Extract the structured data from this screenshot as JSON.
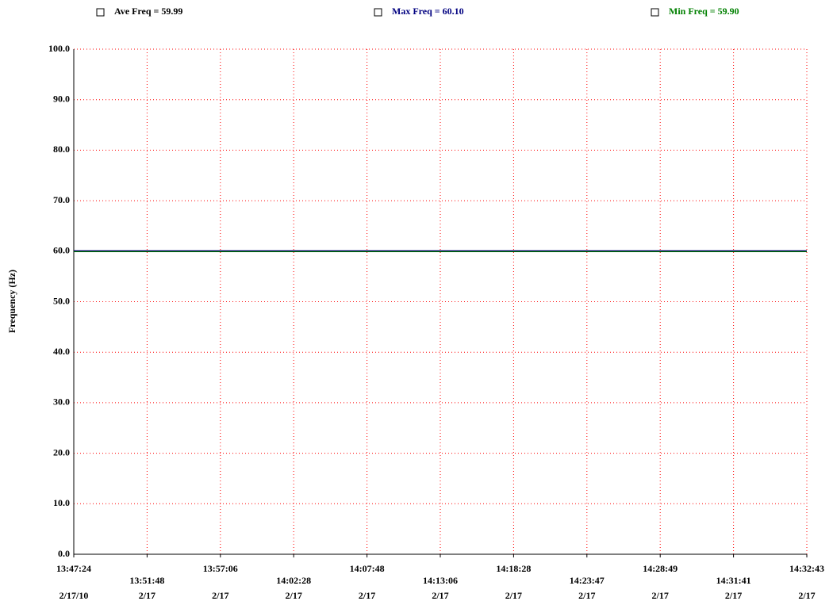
{
  "chart_data": {
    "type": "line",
    "ylabel": "Frequency (Hz)",
    "categories": [
      "13:47:24",
      "13:51:48",
      "13:57:06",
      "14:02:28",
      "14:07:48",
      "14:13:06",
      "14:18:28",
      "14:23:47",
      "14:28:49",
      "14:31:41",
      "14:32:43"
    ],
    "dates": [
      "2/17/10",
      "2/17",
      "2/17",
      "2/17",
      "2/17",
      "2/17",
      "2/17",
      "2/17",
      "2/17",
      "2/17",
      "2/17"
    ],
    "series": [
      {
        "name": "Ave Freq = 59.99",
        "color": "#000000",
        "values": [
          59.99,
          59.99,
          59.99,
          59.99,
          59.99,
          59.99,
          59.99,
          59.99,
          59.99,
          59.99,
          59.99
        ]
      },
      {
        "name": "Max Freq = 60.10",
        "color": "#000080",
        "values": [
          60.1,
          60.1,
          60.1,
          60.1,
          60.1,
          60.1,
          60.1,
          60.1,
          60.1,
          60.1,
          60.1
        ]
      },
      {
        "name": "Min Freq = 59.90",
        "color": "#008000",
        "values": [
          59.9,
          59.9,
          59.9,
          59.9,
          59.9,
          59.9,
          59.9,
          59.9,
          59.9,
          59.9,
          59.9
        ]
      }
    ],
    "ylim": [
      0,
      100
    ],
    "yticks": [
      {
        "value": 0,
        "label": "0.0"
      },
      {
        "value": 10,
        "label": "10.0"
      },
      {
        "value": 20,
        "label": "20.0"
      },
      {
        "value": 30,
        "label": "30.0"
      },
      {
        "value": 40,
        "label": "40.0"
      },
      {
        "value": 50,
        "label": "50.0"
      },
      {
        "value": 60,
        "label": "60.0"
      },
      {
        "value": 70,
        "label": "70.0"
      },
      {
        "value": 80,
        "label": "80.0"
      },
      {
        "value": 90,
        "label": "90.0"
      },
      {
        "value": 100,
        "label": "100.0"
      }
    ],
    "grid": true,
    "grid_color": "#ff0000"
  }
}
